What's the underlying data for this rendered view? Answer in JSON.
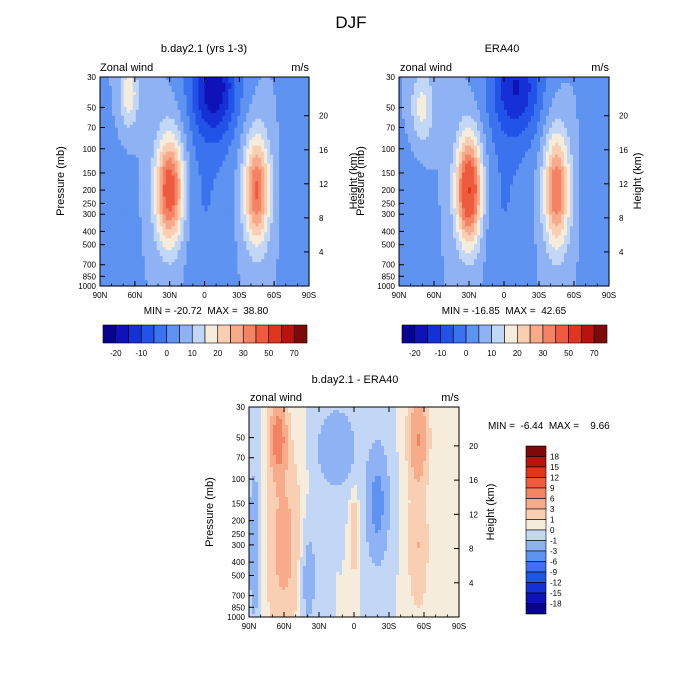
{
  "figure": {
    "title": "DJF"
  },
  "chart_data": [
    {
      "type": "heatmap",
      "panel": "top-left",
      "title": "b.day2.1 (yrs 1-3)",
      "left_label": "Zonal wind",
      "right_label": "m/s",
      "ylabel": "Pressure (mb)",
      "right_axis_label": "Height (km)",
      "xticks": [
        "90N",
        "60N",
        "30N",
        "0",
        "30S",
        "60S",
        "90S"
      ],
      "xlim": [
        90,
        -90
      ],
      "yticks": [
        "30",
        "50",
        "70",
        "100",
        "150",
        "200",
        "250",
        "300",
        "400",
        "500",
        "700",
        "850",
        "1000"
      ],
      "ylim_mb": [
        1000,
        30
      ],
      "right_ticks": [
        "4",
        "8",
        "12",
        "16",
        "20"
      ],
      "stats": "MIN = -20.72  MAX =  38.80",
      "min": -20.72,
      "max": 38.8,
      "features": [
        {
          "lat": 65,
          "p": 40,
          "value": 14,
          "sx": 8,
          "sy": 0.55
        },
        {
          "lat": 30,
          "p": 200,
          "value": 36,
          "sx": 12,
          "sy": 0.9
        },
        {
          "lat": -45,
          "p": 200,
          "value": 31,
          "sx": 11,
          "sy": 0.9
        },
        {
          "lat": -8,
          "p": 35,
          "value": -24,
          "sx": 20,
          "sy": 0.9
        },
        {
          "lat": 0,
          "p": 250,
          "value": -5,
          "sx": 22,
          "sy": 1.3
        },
        {
          "lat": 90,
          "p": 400,
          "value": -4,
          "sx": 22,
          "sy": 1.5
        },
        {
          "lat": -85,
          "p": 200,
          "value": -5,
          "sx": 16,
          "sy": 1.5
        }
      ]
    },
    {
      "type": "heatmap",
      "panel": "top-right",
      "title": "ERA40",
      "left_label": "zonal wind",
      "right_label": "m/s",
      "ylabel": "Pressure (mb)",
      "right_axis_label": "Height (km)",
      "xticks": [
        "90N",
        "60N",
        "30N",
        "0",
        "30S",
        "60S",
        "90S"
      ],
      "xlim": [
        90,
        -90
      ],
      "yticks": [
        "30",
        "50",
        "70",
        "100",
        "150",
        "200",
        "250",
        "300",
        "400",
        "500",
        "700",
        "850",
        "1000"
      ],
      "ylim_mb": [
        1000,
        30
      ],
      "right_ticks": [
        "4",
        "8",
        "12",
        "16",
        "20"
      ],
      "stats": "MIN = -16.85  MAX =  42.65",
      "min": -16.85,
      "max": 42.65,
      "features": [
        {
          "lat": 70,
          "p": 50,
          "value": 12,
          "sx": 10,
          "sy": 0.6
        },
        {
          "lat": 30,
          "p": 200,
          "value": 41,
          "sx": 11,
          "sy": 0.9
        },
        {
          "lat": -45,
          "p": 200,
          "value": 30,
          "sx": 11,
          "sy": 0.95
        },
        {
          "lat": -10,
          "p": 35,
          "value": -20,
          "sx": 22,
          "sy": 0.9
        },
        {
          "lat": 0,
          "p": 250,
          "value": -5,
          "sx": 22,
          "sy": 1.3
        },
        {
          "lat": 90,
          "p": 400,
          "value": -4,
          "sx": 20,
          "sy": 1.5
        },
        {
          "lat": -85,
          "p": 200,
          "value": -5,
          "sx": 16,
          "sy": 1.5
        }
      ]
    },
    {
      "type": "heatmap",
      "panel": "bottom",
      "title": "b.day2.1 - ERA40",
      "left_label": "zonal wind",
      "right_label": "m/s",
      "ylabel": "Pressure (mb)",
      "right_axis_label": "Height (km)",
      "xticks": [
        "90N",
        "60N",
        "30N",
        "0",
        "30S",
        "60S",
        "90S"
      ],
      "xlim": [
        90,
        -90
      ],
      "yticks": [
        "30",
        "50",
        "70",
        "100",
        "150",
        "200",
        "250",
        "300",
        "400",
        "500",
        "700",
        "850",
        "1000"
      ],
      "ylim_mb": [
        1000,
        30
      ],
      "right_ticks": [
        "4",
        "8",
        "12",
        "16",
        "20"
      ],
      "stats": "MIN =  -6.44  MAX =    9.66",
      "min": -6.44,
      "max": 9.66,
      "features": [
        {
          "lat": 65,
          "p": 50,
          "value": 8,
          "sx": 7,
          "sy": 0.6
        },
        {
          "lat": 60,
          "p": 300,
          "value": 4,
          "sx": 14,
          "sy": 1.4
        },
        {
          "lat": -55,
          "p": 50,
          "value": 6,
          "sx": 8,
          "sy": 0.7
        },
        {
          "lat": -55,
          "p": 300,
          "value": 3,
          "sx": 8,
          "sy": 1.0
        },
        {
          "lat": 0,
          "p": 250,
          "value": 3,
          "sx": 3,
          "sy": 0.6
        },
        {
          "lat": 15,
          "p": 60,
          "value": -3,
          "sx": 15,
          "sy": 0.6
        },
        {
          "lat": -20,
          "p": 150,
          "value": -4,
          "sx": 9,
          "sy": 0.9
        },
        {
          "lat": 85,
          "p": 300,
          "value": -2,
          "sx": 6,
          "sy": 1.5
        },
        {
          "lat": 40,
          "p": 500,
          "value": -2,
          "sx": 8,
          "sy": 1.0
        }
      ]
    }
  ],
  "colorbars": {
    "top": {
      "labels": [
        "-20",
        "-10",
        "0",
        "10",
        "20",
        "30",
        "50",
        "70"
      ],
      "levels": [
        -25,
        -20,
        -15,
        -10,
        -5,
        0,
        5,
        10,
        15,
        20,
        25,
        30,
        40,
        50,
        60,
        70
      ],
      "colors": [
        "#06038f",
        "#0e12b8",
        "#1531d6",
        "#2253e8",
        "#3b73ef",
        "#5e93f2",
        "#8fb2f4",
        "#c2d6f6",
        "#f5ecdc",
        "#f8cfb2",
        "#f8ab8a",
        "#f48363",
        "#ee5b3f",
        "#e1361e",
        "#b8130f",
        "#7d0a08"
      ]
    },
    "bottom": {
      "labels": [
        "18",
        "15",
        "12",
        "9",
        "6",
        "3",
        "1",
        "0",
        "-1",
        "-3",
        "-6",
        "-9",
        "-12",
        "-15",
        "-18"
      ],
      "levels": [
        -18,
        -15,
        -12,
        -9,
        -6,
        -3,
        -1,
        0,
        1,
        3,
        6,
        9,
        12,
        15,
        18
      ],
      "colors": [
        "#06038f",
        "#0e12b8",
        "#1531d6",
        "#2253e8",
        "#3b73ef",
        "#5e93f2",
        "#8fb2f4",
        "#c2d6f6",
        "#f5ecdc",
        "#f8cfb2",
        "#f8ab8a",
        "#f48363",
        "#ee5b3f",
        "#e1361e",
        "#b8130f",
        "#7d0a08"
      ]
    }
  }
}
